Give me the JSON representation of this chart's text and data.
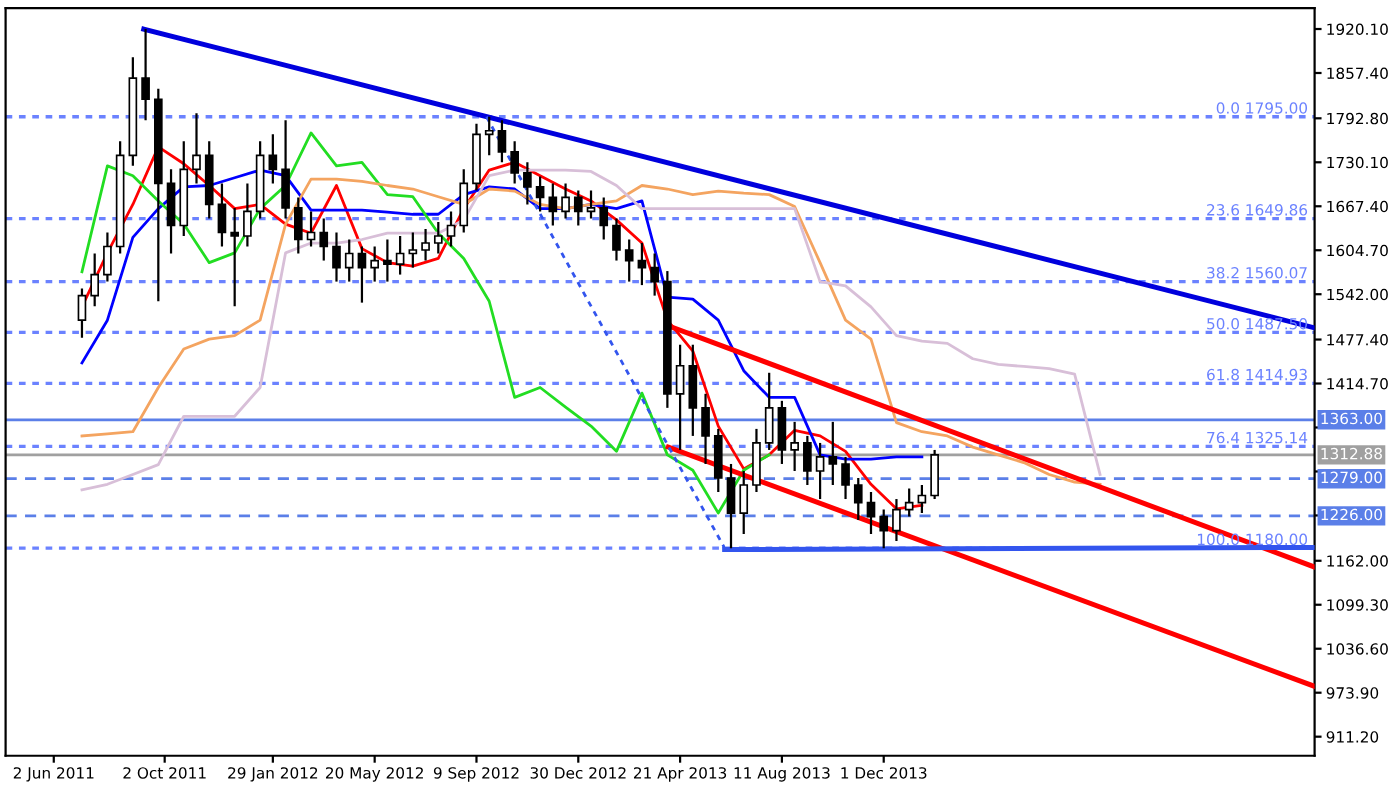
{
  "chart_data": {
    "type": "candlestick",
    "x": [
      "2011-07-03",
      "2011-07-17",
      "2011-07-31",
      "2011-08-14",
      "2011-08-28",
      "2011-09-11",
      "2011-09-25",
      "2011-10-09",
      "2011-10-23",
      "2011-11-06",
      "2011-11-20",
      "2011-12-04",
      "2011-12-18",
      "2012-01-01",
      "2012-01-15",
      "2012-01-29",
      "2012-02-12",
      "2012-02-26",
      "2012-03-11",
      "2012-03-25",
      "2012-04-08",
      "2012-04-22",
      "2012-05-06",
      "2012-05-20",
      "2012-06-03",
      "2012-06-17",
      "2012-07-01",
      "2012-07-15",
      "2012-07-29",
      "2012-08-12",
      "2012-08-26",
      "2012-09-09",
      "2012-09-23",
      "2012-10-07",
      "2012-10-21",
      "2012-11-04",
      "2012-11-18",
      "2012-12-02",
      "2012-12-16",
      "2012-12-30",
      "2013-01-13",
      "2013-01-27",
      "2013-02-10",
      "2013-02-24",
      "2013-03-10",
      "2013-03-24",
      "2013-04-07",
      "2013-04-21",
      "2013-05-05",
      "2013-05-19",
      "2013-06-02",
      "2013-06-16",
      "2013-06-30",
      "2013-07-14",
      "2013-07-28",
      "2013-08-11",
      "2013-08-25",
      "2013-09-08",
      "2013-09-22",
      "2013-10-06",
      "2013-10-20",
      "2013-11-03",
      "2013-11-17",
      "2013-12-01",
      "2013-12-15",
      "2013-12-29",
      "2014-01-12",
      "2014-01-26"
    ],
    "ohlc": [
      [
        1505,
        1550,
        1480,
        1540
      ],
      [
        1540,
        1600,
        1525,
        1570
      ],
      [
        1570,
        1630,
        1560,
        1610
      ],
      [
        1610,
        1760,
        1600,
        1740
      ],
      [
        1740,
        1880,
        1725,
        1850
      ],
      [
        1850,
        1920,
        1790,
        1820
      ],
      [
        1820,
        1835,
        1532,
        1700
      ],
      [
        1700,
        1720,
        1600,
        1640
      ],
      [
        1640,
        1760,
        1625,
        1720
      ],
      [
        1720,
        1800,
        1700,
        1740
      ],
      [
        1740,
        1760,
        1650,
        1670
      ],
      [
        1670,
        1700,
        1610,
        1630
      ],
      [
        1630,
        1665,
        1525,
        1625
      ],
      [
        1625,
        1700,
        1610,
        1660
      ],
      [
        1660,
        1760,
        1650,
        1740
      ],
      [
        1740,
        1770,
        1700,
        1720
      ],
      [
        1720,
        1790,
        1650,
        1665
      ],
      [
        1665,
        1680,
        1600,
        1620
      ],
      [
        1620,
        1660,
        1610,
        1630
      ],
      [
        1630,
        1650,
        1590,
        1610
      ],
      [
        1610,
        1630,
        1560,
        1580
      ],
      [
        1580,
        1620,
        1560,
        1600
      ],
      [
        1600,
        1610,
        1530,
        1580
      ],
      [
        1580,
        1610,
        1560,
        1590
      ],
      [
        1590,
        1620,
        1560,
        1585
      ],
      [
        1585,
        1625,
        1570,
        1600
      ],
      [
        1600,
        1630,
        1580,
        1605
      ],
      [
        1605,
        1635,
        1590,
        1615
      ],
      [
        1615,
        1645,
        1600,
        1625
      ],
      [
        1625,
        1660,
        1610,
        1640
      ],
      [
        1640,
        1720,
        1630,
        1700
      ],
      [
        1700,
        1785,
        1690,
        1770
      ],
      [
        1770,
        1795,
        1740,
        1775
      ],
      [
        1775,
        1790,
        1730,
        1745
      ],
      [
        1745,
        1760,
        1700,
        1715
      ],
      [
        1715,
        1730,
        1670,
        1695
      ],
      [
        1695,
        1710,
        1660,
        1680
      ],
      [
        1680,
        1700,
        1640,
        1660
      ],
      [
        1660,
        1700,
        1650,
        1680
      ],
      [
        1680,
        1690,
        1640,
        1660
      ],
      [
        1660,
        1690,
        1650,
        1665
      ],
      [
        1665,
        1680,
        1620,
        1640
      ],
      [
        1640,
        1650,
        1590,
        1605
      ],
      [
        1605,
        1620,
        1560,
        1590
      ],
      [
        1590,
        1615,
        1555,
        1580
      ],
      [
        1580,
        1600,
        1540,
        1560
      ],
      [
        1560,
        1575,
        1380,
        1400
      ],
      [
        1400,
        1470,
        1320,
        1440
      ],
      [
        1440,
        1470,
        1340,
        1380
      ],
      [
        1380,
        1400,
        1300,
        1340
      ],
      [
        1340,
        1350,
        1260,
        1280
      ],
      [
        1280,
        1300,
        1180,
        1230
      ],
      [
        1230,
        1290,
        1200,
        1270
      ],
      [
        1270,
        1350,
        1260,
        1330
      ],
      [
        1330,
        1430,
        1320,
        1380
      ],
      [
        1380,
        1390,
        1300,
        1320
      ],
      [
        1320,
        1360,
        1290,
        1330
      ],
      [
        1330,
        1340,
        1270,
        1290
      ],
      [
        1290,
        1330,
        1250,
        1310
      ],
      [
        1310,
        1360,
        1270,
        1300
      ],
      [
        1300,
        1310,
        1250,
        1270
      ],
      [
        1270,
        1280,
        1220,
        1245
      ],
      [
        1245,
        1260,
        1200,
        1225
      ],
      [
        1225,
        1235,
        1180,
        1205
      ],
      [
        1205,
        1250,
        1190,
        1235
      ],
      [
        1235,
        1265,
        1225,
        1245
      ],
      [
        1245,
        1270,
        1230,
        1255
      ],
      [
        1255,
        1320,
        1250,
        1313
      ]
    ],
    "color": "#000000",
    "series": [
      {
        "type": "line",
        "color": "#ff0000",
        "x": [
          "2011-07-03",
          "2011-07-31",
          "2011-08-28",
          "2011-09-25",
          "2011-10-23",
          "2011-11-20",
          "2011-12-18",
          "2012-01-15",
          "2012-02-12",
          "2012-03-11",
          "2012-04-08",
          "2012-05-06",
          "2012-06-03",
          "2012-07-01",
          "2012-07-29",
          "2012-08-26",
          "2012-09-23",
          "2012-10-21",
          "2012-11-18",
          "2012-12-16",
          "2013-01-13",
          "2013-02-10",
          "2013-03-10",
          "2013-04-07",
          "2013-05-05",
          "2013-06-02",
          "2013-06-30",
          "2013-07-28",
          "2013-08-25",
          "2013-09-22",
          "2013-10-20",
          "2013-11-17",
          "2013-12-15",
          "2014-01-12"
        ],
        "values": [
          1524,
          1601,
          1670,
          1752,
          1728,
          1697,
          1664,
          1670,
          1642,
          1629,
          1697,
          1607,
          1587,
          1582,
          1593,
          1664,
          1719,
          1730,
          1711,
          1692,
          1675,
          1648,
          1615,
          1505,
          1461,
          1354,
          1293,
          1313,
          1348,
          1340,
          1318,
          1271,
          1236,
          1241
        ]
      },
      {
        "type": "line",
        "color": "#0000ff",
        "x": [
          "2011-07-03",
          "2011-07-31",
          "2011-08-28",
          "2011-09-25",
          "2011-10-23",
          "2011-11-20",
          "2011-12-18",
          "2012-01-15",
          "2012-02-12",
          "2012-03-11",
          "2012-04-08",
          "2012-05-06",
          "2012-06-03",
          "2012-07-01",
          "2012-07-29",
          "2012-08-26",
          "2012-09-23",
          "2012-10-21",
          "2012-11-18",
          "2012-12-16",
          "2013-01-13",
          "2013-02-10",
          "2013-03-10",
          "2013-04-07",
          "2013-05-05",
          "2013-06-02",
          "2013-06-30",
          "2013-07-28",
          "2013-08-25",
          "2013-09-22",
          "2013-10-20",
          "2013-11-17",
          "2013-12-15",
          "2014-01-12"
        ],
        "values": [
          1444,
          1505,
          1623,
          1664,
          1695,
          1697,
          1708,
          1719,
          1711,
          1662,
          1662,
          1662,
          1659,
          1656,
          1656,
          1684,
          1695,
          1692,
          1664,
          1664,
          1670,
          1664,
          1675,
          1538,
          1535,
          1505,
          1433,
          1395,
          1395,
          1313,
          1307,
          1307,
          1310,
          1310
        ]
      },
      {
        "type": "line",
        "color": "#22dd22",
        "x": [
          "2011-07-03",
          "2011-07-31",
          "2011-08-28",
          "2011-09-25",
          "2011-10-23",
          "2011-11-20",
          "2011-12-18",
          "2012-01-15",
          "2012-02-12",
          "2012-03-11",
          "2012-04-08",
          "2012-05-06",
          "2012-06-03",
          "2012-07-01",
          "2012-07-29",
          "2012-08-26",
          "2012-09-23",
          "2012-10-21",
          "2012-11-18",
          "2012-12-16",
          "2013-01-13",
          "2013-02-10",
          "2013-03-10",
          "2013-04-07",
          "2013-05-05",
          "2013-06-02",
          "2013-06-30",
          "2013-07-28"
        ],
        "values": [
          1574,
          1725,
          1711,
          1675,
          1642,
          1587,
          1601,
          1664,
          1697,
          1772,
          1725,
          1730,
          1684,
          1681,
          1629,
          1593,
          1532,
          1395,
          1409,
          1381,
          1354,
          1318,
          1401,
          1313,
          1291,
          1230,
          1291,
          1313
        ]
      },
      {
        "type": "line",
        "color": "#f4a460",
        "x": [
          "2011-07-03",
          "2011-07-31",
          "2011-08-28",
          "2011-09-25",
          "2011-10-23",
          "2011-11-20",
          "2011-12-18",
          "2012-01-15",
          "2012-02-12",
          "2012-03-11",
          "2012-04-08",
          "2012-05-06",
          "2012-06-03",
          "2012-07-01",
          "2012-07-29",
          "2012-08-26",
          "2012-09-23",
          "2012-10-21",
          "2012-11-18",
          "2012-12-16",
          "2013-01-13",
          "2013-02-10",
          "2013-03-10",
          "2013-04-07",
          "2013-05-05",
          "2013-06-02",
          "2013-06-30",
          "2013-07-28",
          "2013-08-25",
          "2013-09-22",
          "2013-10-20",
          "2013-11-17",
          "2013-12-15",
          "2014-01-12",
          "2014-02-09",
          "2014-03-09",
          "2014-04-06",
          "2014-05-04",
          "2014-06-01",
          "2014-06-29",
          "2014-07-27"
        ],
        "values": [
          1340,
          1343,
          1346,
          1409,
          1464,
          1478,
          1483,
          1505,
          1642,
          1706,
          1706,
          1703,
          1697,
          1692,
          1681,
          1670,
          1692,
          1689,
          1670,
          1664,
          1670,
          1675,
          1697,
          1692,
          1684,
          1689,
          1686,
          1684,
          1667,
          1587,
          1505,
          1478,
          1359,
          1346,
          1340,
          1324,
          1313,
          1302,
          1285,
          1274,
          1271
        ]
      },
      {
        "type": "line",
        "color": "#d8bfd8",
        "x": [
          "2011-07-03",
          "2011-07-31",
          "2011-08-28",
          "2011-09-25",
          "2011-10-23",
          "2011-11-20",
          "2011-12-18",
          "2012-01-15",
          "2012-02-12",
          "2012-03-11",
          "2012-04-08",
          "2012-05-06",
          "2012-06-03",
          "2012-07-01",
          "2012-07-29",
          "2012-08-26",
          "2012-09-23",
          "2012-10-21",
          "2012-11-18",
          "2012-12-16",
          "2013-01-13",
          "2013-02-10",
          "2013-03-10",
          "2013-04-07",
          "2013-05-05",
          "2013-06-02",
          "2013-06-30",
          "2013-07-28",
          "2013-08-25",
          "2013-09-22",
          "2013-10-20",
          "2013-11-17",
          "2013-12-15",
          "2014-01-12",
          "2014-02-09",
          "2014-03-09",
          "2014-04-06",
          "2014-05-04",
          "2014-06-01",
          "2014-06-29",
          "2014-07-27"
        ],
        "values": [
          1263,
          1271,
          1285,
          1299,
          1368,
          1368,
          1368,
          1409,
          1601,
          1615,
          1615,
          1620,
          1629,
          1629,
          1629,
          1648,
          1711,
          1719,
          1719,
          1719,
          1717,
          1697,
          1664,
          1664,
          1664,
          1664,
          1664,
          1664,
          1664,
          1560,
          1554,
          1524,
          1483,
          1475,
          1472,
          1450,
          1442,
          1439,
          1436,
          1428,
          1285
        ]
      },
      {
        "type": "line",
        "color": "#0000dd",
        "x": [
          "2011-09-09",
          "2015-03-20"
        ],
        "values": [
          1920,
          1494
        ]
      },
      {
        "type": "line",
        "color": "#ff0000",
        "x": [
          "2013-04-08",
          "2015-03-20"
        ],
        "values": [
          1497,
          1153
        ]
      },
      {
        "type": "line",
        "color": "#ff0000",
        "x": [
          "2013-04-08",
          "2015-03-20"
        ],
        "values": [
          1324,
          983
        ]
      },
      {
        "type": "line",
        "color": "#3355ee",
        "line_style": "dotted",
        "x": [
          "2012-09-20",
          "2013-06-09"
        ],
        "values": [
          1795,
          1180
        ]
      },
      {
        "type": "line",
        "color": "#3355ee",
        "x": [
          "2013-06-09",
          "2015-03-20"
        ],
        "values": [
          1178,
          1181
        ]
      }
    ],
    "ref_lines": [
      {
        "axis": "y",
        "value": 1795.0,
        "label": "0.0 1795.00",
        "color": "#6b82ff",
        "line_style": "dotted"
      },
      {
        "axis": "y",
        "value": 1649.86,
        "label": "23.6 1649.86",
        "color": "#6b82ff",
        "line_style": "dotted"
      },
      {
        "axis": "y",
        "value": 1560.07,
        "label": "38.2 1560.07",
        "color": "#6b82ff",
        "line_style": "dotted"
      },
      {
        "axis": "y",
        "value": 1487.5,
        "label": "50.0 1487.50",
        "color": "#6b82ff",
        "line_style": "dotted"
      },
      {
        "axis": "y",
        "value": 1414.93,
        "label": "61.8 1414.93",
        "color": "#6b82ff",
        "line_style": "dotted"
      },
      {
        "axis": "y",
        "value": 1325.14,
        "label": "76.4 1325.14",
        "color": "#6b82ff",
        "line_style": "dotted"
      },
      {
        "axis": "y",
        "value": 1180.0,
        "label": "100.0 1180.00",
        "color": "#6b82ff",
        "line_style": "dotted"
      },
      {
        "axis": "y",
        "value": 1363.0,
        "label": "1363.00",
        "color": "#5b7fe8",
        "line_style": "solid"
      },
      {
        "axis": "y",
        "value": 1312.88,
        "label": "1312.88",
        "color": "#a0a0a0",
        "line_style": "solid"
      },
      {
        "axis": "y",
        "value": 1279.0,
        "label": "1279.00",
        "color": "#5b7fe8",
        "line_style": "dashed"
      },
      {
        "axis": "y",
        "value": 1226.0,
        "label": "1226.00",
        "color": "#5b7fe8",
        "line_style": "dashed"
      }
    ],
    "xlim": [
      "2011-04-10",
      "2015-03-20"
    ],
    "xticks": [
      {
        "value": "2011-06-02",
        "label": "2 Jun 2011"
      },
      {
        "value": "2011-10-02",
        "label": "2 Oct 2011"
      },
      {
        "value": "2012-01-29",
        "label": "29 Jan 2012"
      },
      {
        "value": "2012-05-20",
        "label": "20 May 2012"
      },
      {
        "value": "2012-09-09",
        "label": "9 Sep 2012"
      },
      {
        "value": "2012-12-30",
        "label": "30 Dec 2012"
      },
      {
        "value": "2013-04-21",
        "label": "21 Apr 2013"
      },
      {
        "value": "2013-08-11",
        "label": "11 Aug 2013"
      },
      {
        "value": "2013-12-01",
        "label": "1 Dec 2013"
      }
    ],
    "ylim": [
      884,
      1950
    ],
    "yticks": [
      {
        "value": 911.2,
        "label": "911.20"
      },
      {
        "value": 973.9,
        "label": "973.90"
      },
      {
        "value": 1036.6,
        "label": "1036.60"
      },
      {
        "value": 1099.3,
        "label": "1099.30"
      },
      {
        "value": 1162.0,
        "label": "1162.00"
      },
      {
        "value": 1226.6,
        "label": null
      },
      {
        "value": 1289.3,
        "label": null
      },
      {
        "value": 1352.0,
        "label": null
      },
      {
        "value": 1414.7,
        "label": "1414.70"
      },
      {
        "value": 1477.4,
        "label": "1477.40"
      },
      {
        "value": 1542.0,
        "label": "1542.00"
      },
      {
        "value": 1604.7,
        "label": "1604.70"
      },
      {
        "value": 1667.4,
        "label": "1667.40"
      },
      {
        "value": 1730.1,
        "label": "1730.10"
      },
      {
        "value": 1792.8,
        "label": "1792.80"
      },
      {
        "value": 1857.4,
        "label": "1857.40"
      },
      {
        "value": 1920.1,
        "label": "1920.10"
      }
    ],
    "grid": false,
    "legend": false
  }
}
